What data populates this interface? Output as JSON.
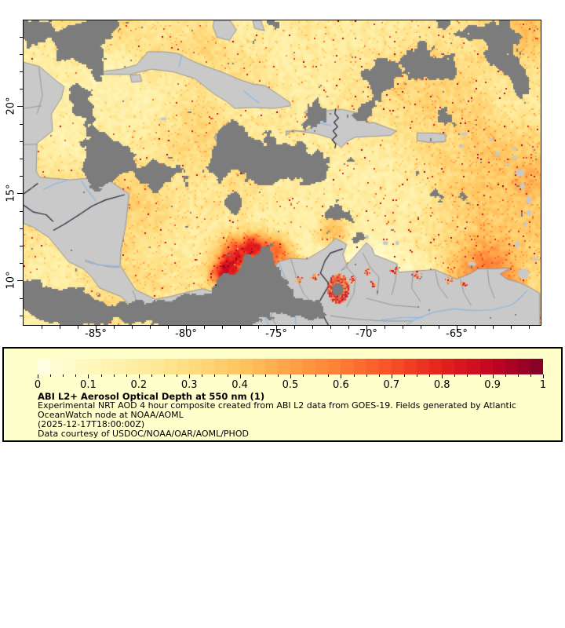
{
  "figure": {
    "map": {
      "projection": "lat-lon",
      "lon_min": -89.0,
      "lon_max": -60.4,
      "lat_min": 7.5,
      "lat_max": 24.95,
      "x_axis": {
        "tick_labels": [
          {
            "value": -85,
            "label": "-85°"
          },
          {
            "value": -80,
            "label": "-80°"
          },
          {
            "value": -75,
            "label": "-75°"
          },
          {
            "value": -70,
            "label": "-70°"
          },
          {
            "value": -65,
            "label": "-65°"
          }
        ],
        "minor_tick_step_deg": 1
      },
      "y_axis": {
        "tick_labels": [
          {
            "value": 10,
            "label": "10°"
          },
          {
            "value": 15,
            "label": "15°"
          },
          {
            "value": 20,
            "label": "20°"
          }
        ],
        "minor_tick_step_deg": 1
      }
    },
    "legend": {
      "background": "#ffffcc",
      "colorbar": {
        "min": 0,
        "max": 1,
        "minor_tick_step": 0.025,
        "tick_values": [
          0,
          0.1,
          0.2,
          0.3,
          0.4,
          0.5,
          0.6,
          0.7,
          0.8,
          0.9,
          1
        ],
        "tick_labels": [
          "0",
          "0.1",
          "0.2",
          "0.3",
          "0.4",
          "0.5",
          "0.6",
          "0.7",
          "0.8",
          "0.9",
          "1"
        ],
        "levels": 40,
        "colors": [
          "#ffffe5",
          "#fff7bc",
          "#feeda1",
          "#fedd81",
          "#fec560",
          "#fea347",
          "#fd7e35",
          "#f84f27",
          "#e5211d",
          "#c30423",
          "#800026"
        ]
      },
      "title": "ABI L2+ Aerosol Optical Depth at 550 nm (1)",
      "lines": [
        "Experimental NRT AOD 4 hour composite created from ABI L2 data from GOES-19. Fields generated by Atlantic",
        "OceanWatch node at NOAA/AOML",
        "(2025-12-17T18:00:00Z)",
        "Data courtesy of USDOC/NOAA/OAR/AOML/PHOD"
      ]
    },
    "map_colors": {
      "land": "#c9c9c9",
      "cloud_no_data": "#7c7c7c",
      "admin_border": "#979797",
      "country_border": "#1f2236",
      "river": "#8cb8e2"
    }
  }
}
